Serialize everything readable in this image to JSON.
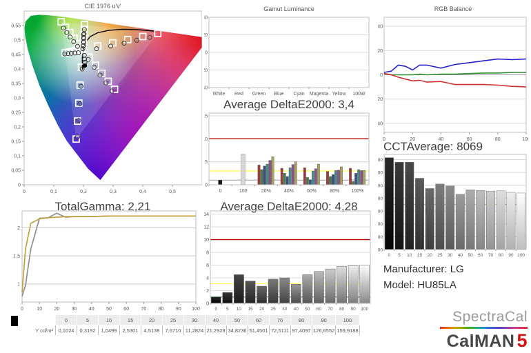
{
  "report": {
    "manufacturer": "Manufacturer: LG",
    "model": "Model: HU85LA"
  },
  "branding": {
    "spectracal": "SpectraCal",
    "calman": "CalMAN",
    "version": "5"
  },
  "table": {
    "row_label": "Y cd/m²",
    "columns": [
      "0",
      "5",
      "10",
      "15",
      "20",
      "25",
      "30",
      "40",
      "50",
      "60",
      "70",
      "80",
      "90",
      "100"
    ],
    "values": [
      "0,1024",
      "0,3192",
      "1,0499",
      "2,5301",
      "4,5139",
      "7,6710",
      "11,2824",
      "21,2928",
      "34,8236",
      "51,4501",
      "72,5111",
      "97,4097",
      "126,6552",
      "159,9188"
    ]
  },
  "chart_data": [
    {
      "type": "scatter",
      "title": "CIE 1976 u'v'",
      "xlabel": "u'",
      "ylabel": "v'",
      "xlim": [
        0,
        0.6
      ],
      "ylim": [
        0,
        0.6
      ],
      "xticks": [
        "0",
        "0,1",
        "0,2",
        "0,3",
        "0,4",
        "0,5"
      ],
      "yticks": [
        "0",
        "0,05",
        "0,1",
        "0,15",
        "0,2",
        "0,25",
        "0,3",
        "0,35",
        "0,4",
        "0,45",
        "0,5",
        "0,55"
      ],
      "spectral_locus": [
        [
          0.2569,
          0.0165
        ],
        [
          0.2161,
          0.0549
        ],
        [
          0.1441,
          0.151
        ],
        [
          0.1147,
          0.2044
        ],
        [
          0.0828,
          0.2708
        ],
        [
          0.0521,
          0.3427
        ],
        [
          0.0282,
          0.4117
        ],
        [
          0.0119,
          0.4698
        ],
        [
          0.0035,
          0.513
        ],
        [
          0.0014,
          0.5432
        ],
        [
          0.0046,
          0.5639
        ],
        [
          0.0231,
          0.5836
        ],
        [
          0.0501,
          0.5868
        ],
        [
          0.0792,
          0.5856
        ],
        [
          0.1127,
          0.5821
        ],
        [
          0.1531,
          0.5766
        ],
        [
          0.2026,
          0.5693
        ],
        [
          0.2623,
          0.5604
        ],
        [
          0.3315,
          0.5501
        ],
        [
          0.4035,
          0.5393
        ],
        [
          0.4692,
          0.5296
        ],
        [
          0.5203,
          0.5219
        ],
        [
          0.583,
          0.5125
        ],
        [
          0.6234,
          0.5065
        ]
      ],
      "gamut_triangle": [
        [
          0.4507,
          0.5229
        ],
        [
          0.125,
          0.5625
        ],
        [
          0.1754,
          0.1579
        ]
      ],
      "blackbody_curve": [
        [
          0.197,
          0.398
        ],
        [
          0.196,
          0.438
        ],
        [
          0.199,
          0.468
        ],
        [
          0.207,
          0.492
        ],
        [
          0.223,
          0.512
        ],
        [
          0.248,
          0.525
        ],
        [
          0.285,
          0.533
        ],
        [
          0.33,
          0.537
        ],
        [
          0.38,
          0.536
        ],
        [
          0.438,
          0.531
        ]
      ],
      "fill": [
        {
          "cx": 0.07,
          "cy": 0.3,
          "r": 0.45,
          "color": "#00a8c8",
          "op": 1
        },
        {
          "cx": 0.03,
          "cy": 0.56,
          "r": 0.42,
          "color": "#00a629",
          "op": 1
        },
        {
          "cx": 0.25,
          "cy": 0.01,
          "r": 0.5,
          "color": "#1a00d8",
          "op": 1
        },
        {
          "cx": 0.63,
          "cy": 0.52,
          "r": 0.48,
          "color": "#dd0010",
          "op": 1
        },
        {
          "cx": 0.42,
          "cy": 0.16,
          "r": 0.36,
          "color": "#b400b4",
          "op": 0.85
        },
        {
          "cx": 0.28,
          "cy": 0.55,
          "r": 0.14,
          "color": "#ff9000",
          "op": 0.9
        },
        {
          "cx": 0.16,
          "cy": 0.575,
          "r": 0.11,
          "color": "#aadc00",
          "op": 0.9
        },
        {
          "cx": 0.195,
          "cy": 0.46,
          "r": 0.18,
          "color": "#ffffff",
          "op": 0.85
        }
      ],
      "targets": [
        [
          0.1978,
          0.4683
        ],
        [
          0.2484,
          0.4792
        ],
        [
          0.299,
          0.4901
        ],
        [
          0.3495,
          0.5011
        ],
        [
          0.4001,
          0.512
        ],
        [
          0.4507,
          0.5229
        ],
        [
          0.1832,
          0.4871
        ],
        [
          0.1687,
          0.506
        ],
        [
          0.1541,
          0.5248
        ],
        [
          0.1396,
          0.5437
        ],
        [
          0.125,
          0.5625
        ],
        [
          0.1933,
          0.4062
        ],
        [
          0.1888,
          0.3441
        ],
        [
          0.1844,
          0.2821
        ],
        [
          0.1799,
          0.22
        ],
        [
          0.1754,
          0.1579
        ],
        [
          0.1859,
          0.4657
        ],
        [
          0.174,
          0.4631
        ],
        [
          0.1621,
          0.4606
        ],
        [
          0.1502,
          0.458
        ],
        [
          0.1383,
          0.4554
        ],
        [
          0.2192,
          0.4406
        ],
        [
          0.2407,
          0.4129
        ],
        [
          0.2621,
          0.3851
        ],
        [
          0.2836,
          0.3574
        ],
        [
          0.305,
          0.3297
        ],
        [
          0.199,
          0.4852
        ],
        [
          0.2002,
          0.5021
        ],
        [
          0.2015,
          0.5191
        ],
        [
          0.2027,
          0.536
        ],
        [
          0.2039,
          0.5529
        ]
      ],
      "measurements": [
        [
          0.244,
          0.47
        ],
        [
          0.292,
          0.479
        ],
        [
          0.337,
          0.489
        ],
        [
          0.38,
          0.499
        ],
        [
          0.424,
          0.509
        ],
        [
          0.18,
          0.478
        ],
        [
          0.167,
          0.494
        ],
        [
          0.155,
          0.51
        ],
        [
          0.144,
          0.526
        ],
        [
          0.133,
          0.541
        ],
        [
          0.196,
          0.4
        ],
        [
          0.192,
          0.34
        ],
        [
          0.188,
          0.28
        ],
        [
          0.184,
          0.222
        ],
        [
          0.18,
          0.165
        ],
        [
          0.183,
          0.456
        ],
        [
          0.171,
          0.455
        ],
        [
          0.159,
          0.454
        ],
        [
          0.148,
          0.453
        ],
        [
          0.137,
          0.452
        ],
        [
          0.216,
          0.433
        ],
        [
          0.236,
          0.406
        ],
        [
          0.256,
          0.379
        ],
        [
          0.276,
          0.352
        ],
        [
          0.296,
          0.324
        ],
        [
          0.199,
          0.479
        ],
        [
          0.2,
          0.493
        ],
        [
          0.201,
          0.508
        ],
        [
          0.202,
          0.522
        ],
        [
          0.203,
          0.536
        ],
        [
          0.2,
          0.519
        ],
        [
          0.201,
          0.505
        ],
        [
          0.201,
          0.492
        ],
        [
          0.2,
          0.481
        ],
        [
          0.198,
          0.47
        ],
        [
          0.203,
          0.447
        ],
        [
          0.204,
          0.434
        ],
        [
          0.205,
          0.423
        ]
      ],
      "black_dot": [
        0.2045,
        0.4115
      ]
    },
    {
      "type": "bar",
      "title": "Gamut Luminance",
      "categories": [
        "White",
        "Red",
        "Green",
        "Blue",
        "Cyan",
        "Magenta",
        "Yellow",
        "100W"
      ],
      "values": [],
      "ylim": [
        -40,
        40
      ],
      "yticks": [
        "40",
        "20",
        "0",
        "-20",
        "-40"
      ]
    },
    {
      "type": "line",
      "title": "RGB Balance",
      "x": [
        0,
        5,
        10,
        15,
        20,
        25,
        30,
        40,
        50,
        60,
        70,
        80,
        90,
        100
      ],
      "xticks": [
        "0",
        "20",
        "40",
        "60",
        "80",
        "100"
      ],
      "ylim": [
        -47.4,
        47.4
      ],
      "yticks": [
        "40",
        "20",
        "0",
        "-20",
        "-40"
      ],
      "series": [
        {
          "name": "blue",
          "color": "#2222cc",
          "values": [
            2,
            3,
            8,
            7,
            4,
            8,
            8,
            5.5,
            8.5,
            10,
            11.5,
            13,
            12.5,
            13
          ]
        },
        {
          "name": "green",
          "color": "#2e8b2e",
          "values": [
            1,
            0,
            0,
            0,
            0,
            0.5,
            0,
            0.5,
            0.5,
            1,
            1.5,
            1.5,
            2,
            2
          ]
        },
        {
          "name": "red",
          "color": "#d03030",
          "values": [
            1,
            0,
            -2,
            -3.5,
            -5,
            -4.5,
            -6,
            -5.5,
            -8,
            -8,
            -8,
            -8.5,
            -9.5,
            -10
          ]
        }
      ]
    },
    {
      "type": "bar",
      "title": "Average DeltaE2000: 3,4",
      "ylim": [
        0,
        15.6
      ],
      "yticks": [
        "0",
        "5",
        "10",
        "15"
      ],
      "ref_lines": [
        {
          "y": 1,
          "color": "#b8b8b8"
        },
        {
          "y": 3,
          "color": "#ffff45"
        },
        {
          "y": 10,
          "color": "#c00000"
        }
      ],
      "palette": [
        "#a03c3c",
        "#4a7a4a",
        "#3a4e86",
        "#4a8a8a",
        "#8a5288",
        "#aaa35e"
      ],
      "groups": [
        {
          "label": "0",
          "values": [
            1.0
          ],
          "colors": [
            "#161616"
          ]
        },
        {
          "label": "100",
          "values": [
            6.6
          ],
          "colors": [
            "#d9d9d9"
          ]
        },
        {
          "label": "20%",
          "values": [
            4.3,
            3.3,
            4.1,
            4.5,
            5.3,
            6.1
          ]
        },
        {
          "label": "40%",
          "values": [
            3.6,
            2.5,
            1.8,
            3.7,
            4.4,
            5.0
          ]
        },
        {
          "label": "60%",
          "values": [
            3.7,
            1.6,
            1.1,
            3.0,
            3.5,
            4.5
          ]
        },
        {
          "label": "80%",
          "values": [
            2.9,
            1.8,
            2.2,
            3.1,
            3.2,
            3.9
          ]
        },
        {
          "label": "100%",
          "values": [
            3.6,
            0.7,
            2.5,
            3.3,
            3.1,
            3.1
          ]
        }
      ]
    },
    {
      "type": "bar",
      "title": "CCTAverage: 8069",
      "categories": [
        "0",
        "5",
        "10",
        "15",
        "20",
        "25",
        "30",
        "40",
        "50",
        "60",
        "70",
        "80",
        "90",
        "100"
      ],
      "values": [
        10150,
        9800,
        9800,
        8550,
        7750,
        8100,
        7950,
        7300,
        7650,
        7600,
        7550,
        7570,
        7450,
        7400
      ],
      "ylim": [
        3000,
        10400
      ],
      "yticks": [
        "3000",
        "4000",
        "5000",
        "6000",
        "7000",
        "8000",
        "9000",
        "10000"
      ],
      "ref_lines": [
        {
          "y": 6500,
          "color": "#c9ae6a"
        }
      ]
    },
    {
      "type": "line",
      "title": "TotalGamma: 2,21",
      "x": [
        0,
        2,
        5,
        10,
        15,
        20,
        25,
        30,
        40,
        50,
        60,
        70,
        80,
        90,
        100
      ],
      "xticks": [
        "0",
        "10",
        "20",
        "30",
        "40",
        "50",
        "60",
        "70",
        "80",
        "90",
        "100"
      ],
      "ylim": [
        0.68,
        2.3
      ],
      "yticks": [
        {
          "v": 1,
          "label": "1"
        },
        {
          "v": 1.5,
          "label": "1,5"
        },
        {
          "v": 2,
          "label": "2"
        }
      ],
      "series": [
        {
          "name": "measured-gray",
          "color": "#8f8f8f",
          "values": [
            0.78,
            0.98,
            1.62,
            2.17,
            2.18,
            2.26,
            2.19,
            2.2,
            2.2,
            2.21,
            2.21,
            2.21,
            2.21,
            2.21,
            2.21
          ]
        },
        {
          "name": "target-gold",
          "color": "#c2a33c",
          "values": [
            0.85,
            1.62,
            2.08,
            2.16,
            2.18,
            2.19,
            2.2,
            2.2,
            2.2,
            2.21,
            2.21,
            2.21,
            2.21,
            2.21,
            2.21
          ]
        }
      ]
    },
    {
      "type": "bar",
      "title": "Average DeltaE2000: 4,28",
      "categories": [
        "0",
        "5",
        "10",
        "15",
        "20",
        "25",
        "30",
        "40",
        "50",
        "60",
        "70",
        "80",
        "90",
        "100"
      ],
      "values": [
        1.0,
        1.7,
        4.5,
        3.5,
        2.7,
        3.8,
        4.0,
        3.0,
        4.5,
        5.0,
        5.4,
        5.8,
        5.9,
        6.0
      ],
      "ylim": [
        0,
        14.5
      ],
      "yticks": [
        "0",
        "2",
        "4",
        "6",
        "8",
        "10",
        "12",
        "14"
      ],
      "ref_lines": [
        {
          "y": 1,
          "color": "#5d9b5d"
        },
        {
          "y": 3.1,
          "color": "#ffff66"
        },
        {
          "y": 10,
          "color": "#c00000"
        }
      ]
    }
  ]
}
